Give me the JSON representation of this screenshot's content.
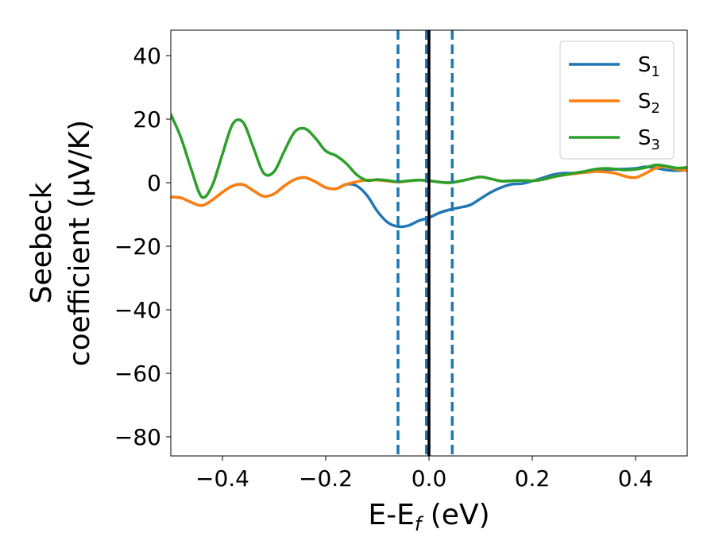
{
  "chart_data": {
    "type": "line",
    "xlabel": {
      "main": "E-E",
      "sub": "f",
      "unit": " (eV)"
    },
    "ylabel": {
      "line1": "Seebeck",
      "line2": "coefficient  (μV/K)"
    },
    "xlim": [
      -0.5,
      0.5
    ],
    "ylim": [
      -86,
      48
    ],
    "xticks": [
      -0.4,
      -0.2,
      0.0,
      0.2,
      0.4
    ],
    "xtick_labels": [
      "−0.4",
      "−0.2",
      "0.0",
      "0.2",
      "0.4"
    ],
    "yticks": [
      40,
      20,
      0,
      -20,
      -40,
      -60,
      -80
    ],
    "ytick_labels": [
      "40",
      "20",
      "0",
      "−20",
      "−40",
      "−60",
      "−80"
    ],
    "grid": false,
    "legend_position": "top-right",
    "vlines": [
      {
        "x": -0.06,
        "style": "dashed",
        "color": "#1f77b4"
      },
      {
        "x": -0.005,
        "style": "dashed",
        "color": "#1f77b4"
      },
      {
        "x": 0.045,
        "style": "dashed",
        "color": "#1f77b4"
      },
      {
        "x": 0.0,
        "style": "solid",
        "color": "#000000"
      }
    ],
    "series": [
      {
        "name": "S",
        "sub": "1",
        "color": "#1f77b4",
        "x": [
          -0.5,
          -0.48,
          -0.46,
          -0.44,
          -0.42,
          -0.4,
          -0.38,
          -0.36,
          -0.34,
          -0.32,
          -0.3,
          -0.28,
          -0.26,
          -0.24,
          -0.22,
          -0.2,
          -0.18,
          -0.16,
          -0.14,
          -0.12,
          -0.1,
          -0.08,
          -0.06,
          -0.04,
          -0.02,
          0.0,
          0.02,
          0.04,
          0.06,
          0.08,
          0.1,
          0.12,
          0.14,
          0.16,
          0.18,
          0.2,
          0.22,
          0.24,
          0.26,
          0.28,
          0.3,
          0.32,
          0.34,
          0.36,
          0.38,
          0.4,
          0.42,
          0.44,
          0.46,
          0.48,
          0.5
        ],
        "y": [
          -4.5,
          -4.8,
          -6.2,
          -7.2,
          -5.5,
          -3.0,
          -1.0,
          -0.6,
          -2.5,
          -4.3,
          -3.5,
          -1.0,
          1.0,
          1.6,
          0.3,
          -1.5,
          -1.9,
          -0.5,
          -1.0,
          -4.0,
          -9.0,
          -12.5,
          -13.8,
          -13.5,
          -12.0,
          -11.0,
          -9.5,
          -8.5,
          -7.8,
          -7.0,
          -5.0,
          -3.0,
          -1.5,
          -0.5,
          -0.3,
          0.5,
          1.5,
          2.5,
          3.0,
          3.0,
          3.2,
          3.5,
          4.0,
          4.2,
          4.3,
          4.5,
          5.0,
          4.6,
          4.0,
          3.8,
          4.0
        ]
      },
      {
        "name": "S",
        "sub": "2",
        "color": "#ff7f0e",
        "x": [
          -0.5,
          -0.48,
          -0.46,
          -0.44,
          -0.42,
          -0.4,
          -0.38,
          -0.36,
          -0.34,
          -0.32,
          -0.3,
          -0.28,
          -0.26,
          -0.24,
          -0.22,
          -0.2,
          -0.18,
          -0.16,
          -0.14,
          -0.12,
          -0.1,
          -0.08,
          -0.06,
          -0.04,
          -0.02,
          0.0,
          0.02,
          0.04,
          0.06,
          0.08,
          0.1,
          0.12,
          0.14,
          0.16,
          0.18,
          0.2,
          0.22,
          0.24,
          0.26,
          0.28,
          0.3,
          0.32,
          0.34,
          0.36,
          0.38,
          0.4,
          0.42,
          0.44,
          0.46,
          0.48,
          0.5
        ],
        "y": [
          -4.5,
          -4.8,
          -6.2,
          -7.2,
          -5.5,
          -3.0,
          -1.0,
          -0.6,
          -2.5,
          -4.3,
          -3.5,
          -1.0,
          1.0,
          1.6,
          0.3,
          -1.5,
          -1.9,
          -0.5,
          0.3,
          0.8,
          0.8,
          0.5,
          0.2,
          0.5,
          0.8,
          0.6,
          0.2,
          0.0,
          0.5,
          1.2,
          1.8,
          1.2,
          0.5,
          0.6,
          0.7,
          0.6,
          1.0,
          1.8,
          2.4,
          2.8,
          3.2,
          3.5,
          3.4,
          3.0,
          2.0,
          1.6,
          3.0,
          4.6,
          5.0,
          4.2,
          3.8
        ]
      },
      {
        "name": "S",
        "sub": "3",
        "color": "#2ca02c",
        "x": [
          -0.5,
          -0.48,
          -0.46,
          -0.44,
          -0.42,
          -0.4,
          -0.38,
          -0.36,
          -0.34,
          -0.32,
          -0.3,
          -0.28,
          -0.26,
          -0.24,
          -0.22,
          -0.2,
          -0.18,
          -0.16,
          -0.14,
          -0.12,
          -0.1,
          -0.08,
          -0.06,
          -0.04,
          -0.02,
          0.0,
          0.02,
          0.04,
          0.06,
          0.08,
          0.1,
          0.12,
          0.14,
          0.16,
          0.18,
          0.2,
          0.22,
          0.24,
          0.26,
          0.28,
          0.3,
          0.32,
          0.34,
          0.36,
          0.38,
          0.4,
          0.42,
          0.44,
          0.46,
          0.48,
          0.5
        ],
        "y": [
          21.5,
          14.0,
          4.0,
          -4.5,
          -1.0,
          9.0,
          18.5,
          19.0,
          11.0,
          3.0,
          3.5,
          10.0,
          16.0,
          17.0,
          14.0,
          10.0,
          8.5,
          6.0,
          2.5,
          0.7,
          1.0,
          0.7,
          0.3,
          0.6,
          0.8,
          0.6,
          0.2,
          0.0,
          0.5,
          1.2,
          1.8,
          1.2,
          0.5,
          0.6,
          0.7,
          0.6,
          1.0,
          1.8,
          2.4,
          3.0,
          3.5,
          4.2,
          4.5,
          4.3,
          4.0,
          4.2,
          4.8,
          5.6,
          5.2,
          4.6,
          4.8
        ]
      }
    ]
  }
}
